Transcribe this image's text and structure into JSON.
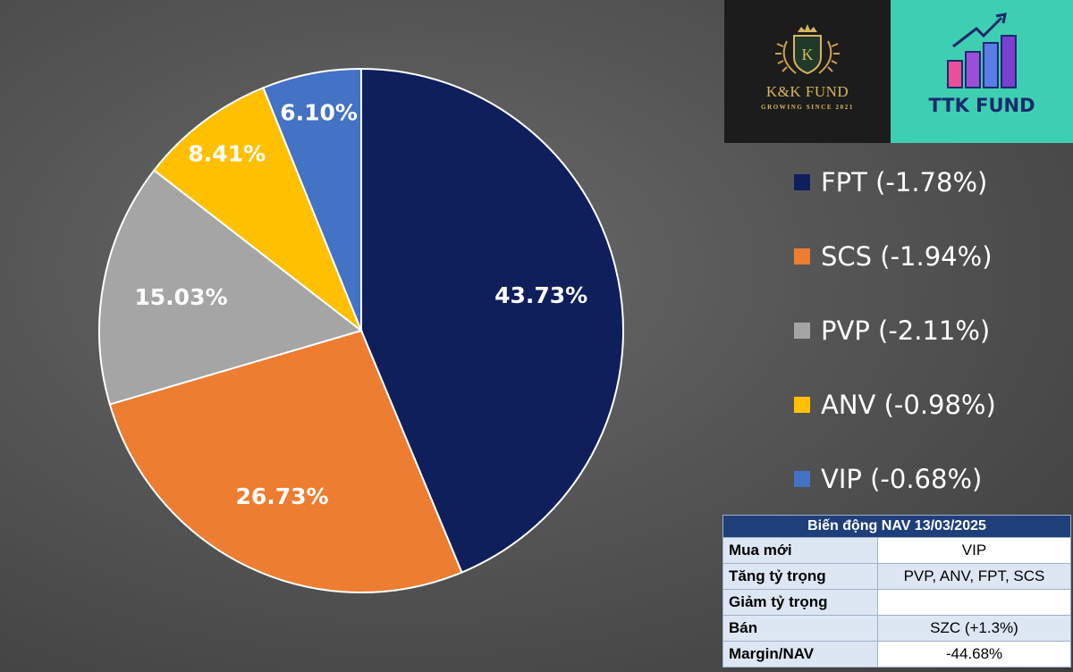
{
  "chart_data": {
    "type": "pie",
    "slices": [
      {
        "label": "FPT (-1.78%)",
        "value": 43.73,
        "display": "43.73%",
        "color": "#0e1f5b"
      },
      {
        "label": "SCS (-1.94%)",
        "value": 26.73,
        "display": "26.73%",
        "color": "#ed7d31"
      },
      {
        "label": "PVP (-2.11%)",
        "value": 15.03,
        "display": "15.03%",
        "color": "#a5a5a5"
      },
      {
        "label": "ANV (-0.98%)",
        "value": 8.41,
        "display": "8.41%",
        "color": "#ffc000"
      },
      {
        "label": "VIP (-0.68%)",
        "value": 6.1,
        "display": "6.10%",
        "color": "#4472c4"
      }
    ],
    "legend_position": "right"
  },
  "logos": {
    "kk": {
      "monogram": "K",
      "name": "K&K FUND",
      "tagline": "GROWING SINCE 2021"
    },
    "ttk": {
      "name": "TTK FUND"
    }
  },
  "nav_table": {
    "title": "Biến động NAV 13/03/2025",
    "rows": [
      {
        "label": "Mua mới",
        "value": "VIP"
      },
      {
        "label": "Tăng tỷ trọng",
        "value": "PVP, ANV, FPT, SCS"
      },
      {
        "label": "Giảm tỷ trọng",
        "value": ""
      },
      {
        "label": "Bán",
        "value": "SZC (+1.3%)"
      },
      {
        "label": "Margin/NAV",
        "value": "-44.68%"
      }
    ]
  }
}
